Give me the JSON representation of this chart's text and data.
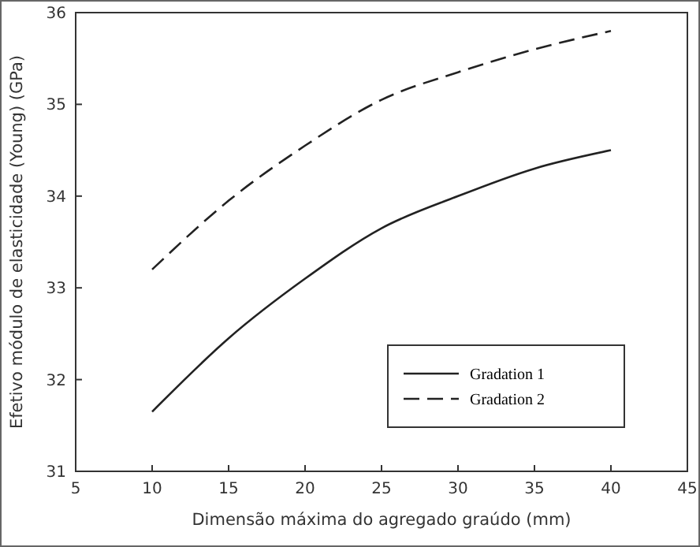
{
  "chart_data": {
    "type": "line",
    "xlabel": "Dimensão máxima do agregado graúdo (mm)",
    "ylabel": "Efetivo módulo de elasticidade (Young) (GPa)",
    "x": [
      10,
      15,
      20,
      25,
      30,
      35,
      40
    ],
    "series": [
      {
        "name": "Gradation 1",
        "color": "#222222",
        "line_style": "solid",
        "values": [
          31.65,
          32.45,
          33.1,
          33.65,
          34.0,
          34.3,
          34.5
        ]
      },
      {
        "name": "Gradation 2",
        "color": "#222222",
        "line_style": "dashed",
        "values": [
          33.2,
          33.95,
          34.55,
          35.05,
          35.35,
          35.6,
          35.8
        ]
      }
    ],
    "xlim": [
      5,
      45
    ],
    "xticks": [
      5,
      10,
      15,
      20,
      25,
      30,
      35,
      40,
      45
    ],
    "ylim": [
      31,
      36
    ],
    "yticks": [
      31,
      32,
      33,
      34,
      35,
      36
    ],
    "grid": false,
    "legend": "bottom right",
    "marker": "none"
  }
}
